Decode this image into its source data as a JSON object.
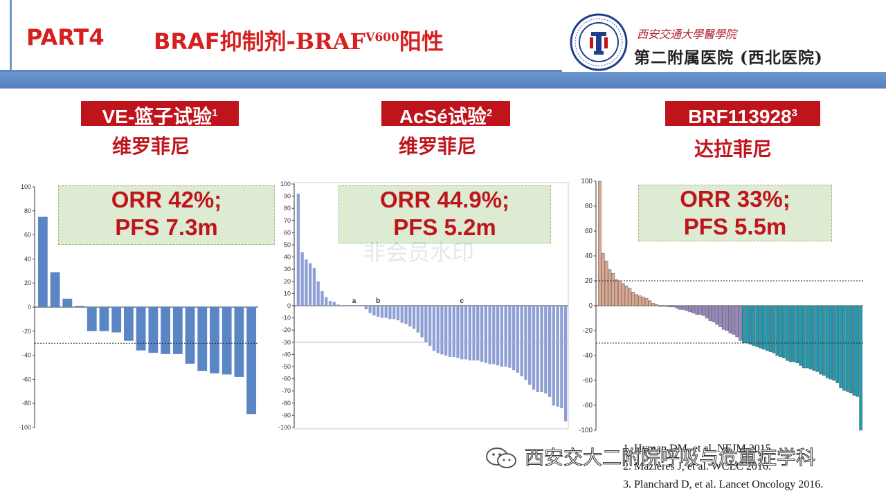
{
  "header": {
    "part": "PART4",
    "title_main": "BRAF抑制剂-",
    "title_braf": "BRAF",
    "title_sup": "V600",
    "title_tail": "阳性",
    "hospital_name_en": "西安交通大學醫學院",
    "hospital_name": "第二附属医院 (西北医院)",
    "logo_icon": "university-seal-icon",
    "colors": {
      "title_red": "#d61f1f",
      "band_blue": "#5d88c5",
      "box_red": "#c0141c",
      "orr_green": "#dcebd1"
    }
  },
  "trials": [
    {
      "name": "VE-篮子试验",
      "sup": "1",
      "drug": "维罗菲尼",
      "orr": "ORR  42%;",
      "pfs": "PFS 7.3m"
    },
    {
      "name": "AcSé试验",
      "sup": "2",
      "drug": "维罗菲尼",
      "orr": "ORR 44.9%;",
      "pfs": "PFS 5.2m"
    },
    {
      "name": "BRF113928",
      "sup": "3",
      "drug": "达拉菲尼",
      "orr": "ORR 33%;",
      "pfs": "PFS 5.5m"
    }
  ],
  "references": [
    "1. Hyman DM, et al. NEJM 2015.",
    "2. Mazieres J, et al. WCLC 2016.",
    "3. Planchard D, et al. Lancet Oncology 2016."
  ],
  "wechat_label": "西安交大二附院呼吸与危重症学科",
  "watermark": "非会员水印",
  "chart_data": [
    {
      "type": "bar",
      "ylim": [
        -100,
        100
      ],
      "yticks": [
        100,
        80,
        60,
        40,
        20,
        0,
        -20,
        -40,
        -60,
        -80,
        -100
      ],
      "threshold_line": -30,
      "color": "#5b86c6",
      "values": [
        75,
        29,
        7,
        1,
        -20,
        -20,
        -21,
        -28,
        -36,
        -38,
        -39,
        -39,
        -47,
        -53,
        -55,
        -56,
        -58,
        -89
      ]
    },
    {
      "type": "bar",
      "ylim": [
        -100,
        100
      ],
      "yticks": [
        100,
        90,
        80,
        70,
        60,
        50,
        40,
        30,
        20,
        10,
        0,
        -10,
        -20,
        -30,
        -40,
        -50,
        -60,
        -70,
        -80,
        -90,
        -100
      ],
      "threshold_line": -30,
      "color": "#8e9fd5",
      "annotations": [
        {
          "label": "a",
          "x_index": 14
        },
        {
          "label": "b",
          "x_index": 20
        },
        {
          "label": "c",
          "x_index": 41
        }
      ],
      "values": [
        92,
        44,
        38,
        35,
        31,
        20,
        12,
        7,
        4,
        3,
        1,
        0,
        0,
        0,
        0,
        0,
        0,
        -3,
        -6,
        -8,
        -9,
        -10,
        -10,
        -11,
        -11,
        -12,
        -14,
        -15,
        -17,
        -19,
        -22,
        -26,
        -30,
        -33,
        -37,
        -39,
        -40,
        -41,
        -42,
        -42,
        -43,
        -44,
        -44,
        -45,
        -45,
        -45,
        -46,
        -47,
        -48,
        -48,
        -49,
        -50,
        -50,
        -51,
        -53,
        -55,
        -58,
        -61,
        -65,
        -69,
        -71,
        -71,
        -72,
        -75,
        -82,
        -83,
        -84,
        -95
      ]
    },
    {
      "type": "bar",
      "ylim": [
        -100,
        100
      ],
      "yticks": [
        100,
        80,
        60,
        40,
        20,
        0,
        -20,
        -40,
        -60,
        -80,
        -100
      ],
      "threshold_lines": [
        20,
        -30
      ],
      "colors": {
        "pd": "#e0a78f",
        "sd": "#9a86c0",
        "pr": "#1f9cb4"
      },
      "values": [
        110,
        42,
        36,
        29,
        26,
        21,
        20,
        18,
        16,
        14,
        11,
        9,
        8,
        7,
        6,
        4,
        2,
        1,
        0,
        0,
        0,
        -1,
        -1,
        -2,
        -3,
        -3,
        -4,
        -5,
        -6,
        -7,
        -7,
        -8,
        -10,
        -12,
        -13,
        -15,
        -17,
        -19,
        -20,
        -22,
        -23,
        -25,
        -28,
        -30,
        -30,
        -31,
        -32,
        -33,
        -34,
        -35,
        -36,
        -37,
        -38,
        -40,
        -41,
        -42,
        -44,
        -45,
        -45,
        -46,
        -48,
        -50,
        -50,
        -51,
        -52,
        -53,
        -55,
        -56,
        -58,
        -59,
        -60,
        -62,
        -66,
        -68,
        -69,
        -70,
        -72,
        -73,
        -100
      ]
    }
  ]
}
